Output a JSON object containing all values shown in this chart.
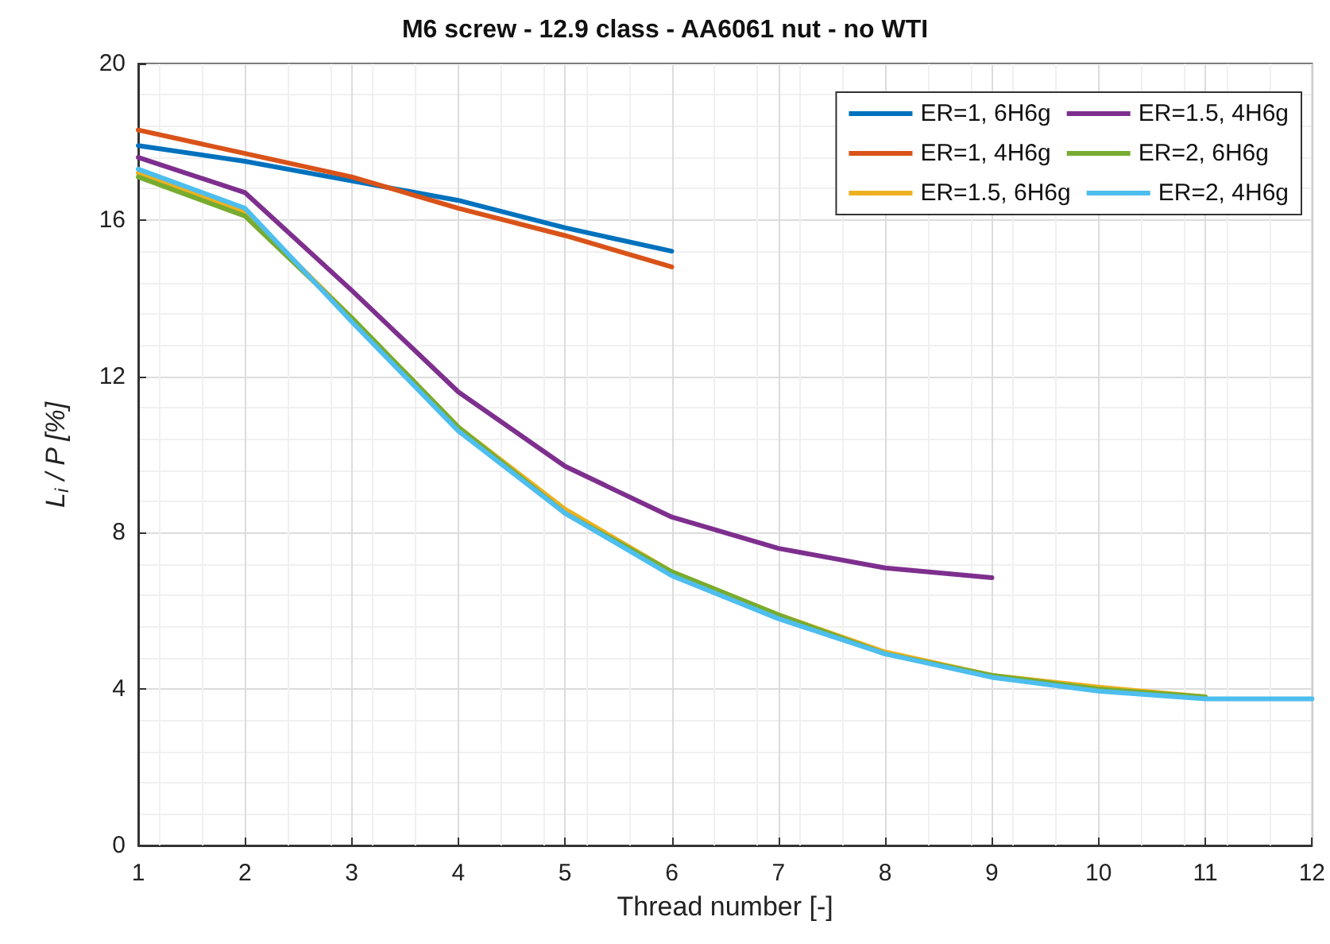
{
  "chart_data": {
    "type": "line",
    "title": "M6 screw - 12.9 class - AA6061 nut - no WTI",
    "xlabel": "Thread number [-]",
    "ylabel": "L$_{i}$ / P [%]",
    "x": [
      1,
      2,
      3,
      4,
      5,
      6,
      7,
      8,
      9,
      10,
      11,
      12
    ],
    "xlim": [
      1,
      12
    ],
    "xticks": [
      1,
      2,
      3,
      4,
      5,
      6,
      7,
      8,
      9,
      10,
      11,
      12
    ],
    "ylim": [
      0,
      20
    ],
    "yticks": [
      0,
      4,
      8,
      12,
      16,
      20
    ],
    "grid": true,
    "legend": "top right",
    "marker": "none",
    "line_style": "solid",
    "series": [
      {
        "name": "ER=1, 6H6g",
        "color": "#0072bd",
        "values": [
          17.9,
          17.5,
          17.0,
          16.5,
          15.8,
          15.2,
          null,
          null,
          null,
          null,
          null,
          null
        ]
      },
      {
        "name": "ER=1, 4H6g",
        "color": "#d95319",
        "values": [
          18.3,
          17.7,
          17.1,
          16.3,
          15.6,
          14.8,
          null,
          null,
          null,
          null,
          null,
          null
        ]
      },
      {
        "name": "ER=1.5, 6H6g",
        "color": "#edb120",
        "values": [
          17.2,
          16.2,
          13.5,
          10.7,
          8.6,
          7.0,
          5.9,
          4.95,
          4.35,
          4.05,
          3.8,
          null
        ]
      },
      {
        "name": "ER=1.5, 4H6g",
        "color": "#7e2f8e",
        "values": [
          17.6,
          16.7,
          14.2,
          11.6,
          9.7,
          8.4,
          7.6,
          7.1,
          6.85,
          null,
          null,
          null
        ]
      },
      {
        "name": "ER=2, 6H6g",
        "color": "#77ac30",
        "values": [
          17.1,
          16.1,
          13.5,
          10.7,
          8.5,
          7.0,
          5.9,
          4.9,
          4.35,
          4.0,
          3.8,
          null
        ]
      },
      {
        "name": "ER=2, 4H6g",
        "color": "#4dbeee",
        "values": [
          17.3,
          16.3,
          13.4,
          10.6,
          8.5,
          6.9,
          5.8,
          4.9,
          4.3,
          3.95,
          3.75,
          3.75
        ]
      }
    ]
  }
}
